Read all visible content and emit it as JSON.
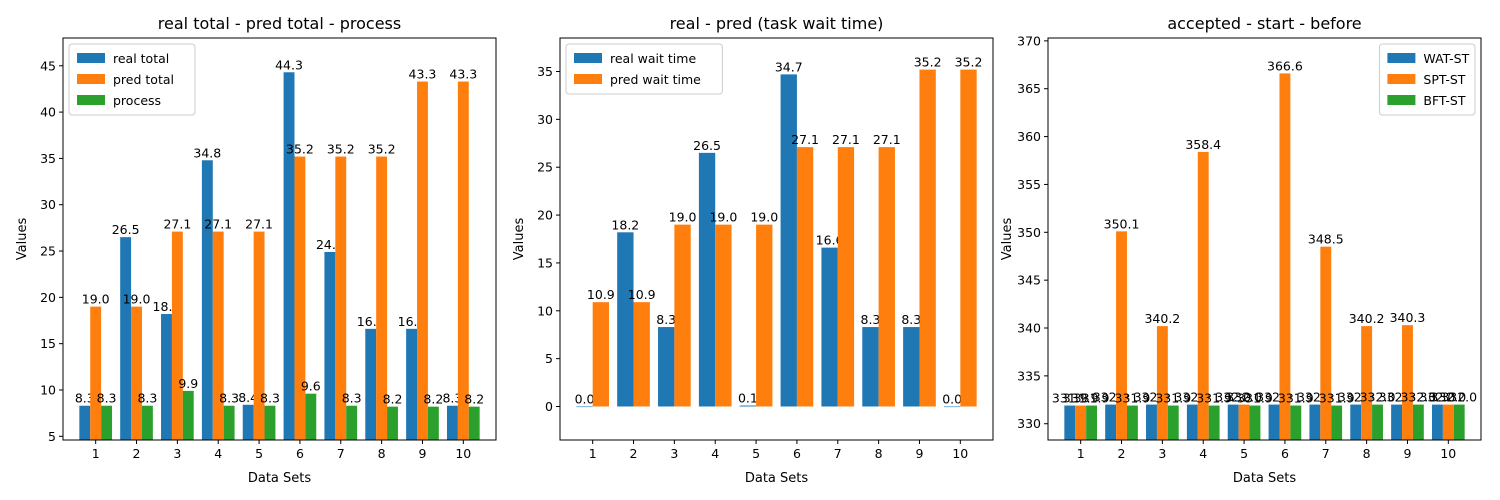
{
  "chart_data": [
    {
      "type": "bar",
      "title": "real total - pred total - process",
      "xlabel": "Data Sets",
      "ylabel": "Values",
      "categories": [
        "1",
        "2",
        "3",
        "4",
        "5",
        "6",
        "7",
        "8",
        "9",
        "10"
      ],
      "ylim": [
        4.6,
        48
      ],
      "yticks": [
        "5",
        "10",
        "15",
        "20",
        "25",
        "30",
        "35",
        "40",
        "45"
      ],
      "legend_position": "top-left",
      "grid": false,
      "series": [
        {
          "name": "real total",
          "color": "#1f77b4",
          "values": [
            8.3,
            26.5,
            18.2,
            34.8,
            8.4,
            44.3,
            24.9,
            16.6,
            16.6,
            8.3
          ],
          "labels": [
            "8.3",
            "26.5",
            "18.2",
            "34.8",
            "8.4",
            "44.3",
            "24.9",
            "16.6",
            "16.6",
            "8.3"
          ]
        },
        {
          "name": "pred total",
          "color": "#ff7f0e",
          "values": [
            19.0,
            19.0,
            27.1,
            27.1,
            27.1,
            35.2,
            35.2,
            35.2,
            43.3,
            43.3
          ],
          "labels": [
            "19.0",
            "19.0",
            "27.1",
            "27.1",
            "27.1",
            "35.2",
            "35.2",
            "35.2",
            "43.3",
            "43.3"
          ]
        },
        {
          "name": "process",
          "color": "#2ca02c",
          "values": [
            8.3,
            8.3,
            9.9,
            8.3,
            8.3,
            9.6,
            8.3,
            8.2,
            8.2,
            8.2
          ],
          "labels": [
            "8.3",
            "8.3",
            "9.9",
            "8.3",
            "8.3",
            "9.6",
            "8.3",
            "8.2",
            "8.2",
            "8.2"
          ]
        }
      ]
    },
    {
      "type": "bar",
      "title": "real - pred (task wait time)",
      "xlabel": "Data Sets",
      "ylabel": "Values",
      "categories": [
        "1",
        "2",
        "3",
        "4",
        "5",
        "6",
        "7",
        "8",
        "9",
        "10"
      ],
      "ylim": [
        -3.5,
        38.5
      ],
      "yticks": [
        "0",
        "5",
        "10",
        "15",
        "20",
        "25",
        "30",
        "35"
      ],
      "legend_position": "top-left",
      "grid": false,
      "series": [
        {
          "name": "real wait time",
          "color": "#1f77b4",
          "values": [
            0.0,
            18.2,
            8.3,
            26.5,
            0.1,
            34.7,
            16.6,
            8.3,
            8.3,
            0.0
          ],
          "labels": [
            "0.0",
            "18.2",
            "8.3",
            "26.5",
            "0.1",
            "34.7",
            "16.6",
            "8.3",
            "8.3",
            "0.0"
          ]
        },
        {
          "name": "pred wait time",
          "color": "#ff7f0e",
          "values": [
            10.9,
            10.9,
            19.0,
            19.0,
            19.0,
            27.1,
            27.1,
            27.1,
            35.2,
            35.2
          ],
          "labels": [
            "10.9",
            "10.9",
            "19.0",
            "19.0",
            "19.0",
            "27.1",
            "27.1",
            "27.1",
            "35.2",
            "35.2"
          ]
        }
      ]
    },
    {
      "type": "bar",
      "title": "accepted - start - before",
      "xlabel": "Data Sets",
      "ylabel": "Values",
      "categories": [
        "1",
        "2",
        "3",
        "4",
        "5",
        "6",
        "7",
        "8",
        "9",
        "10"
      ],
      "ylim": [
        328.3,
        370.3
      ],
      "yticks": [
        "330",
        "335",
        "340",
        "345",
        "350",
        "355",
        "360",
        "365",
        "370"
      ],
      "legend_position": "top-right",
      "grid": false,
      "series": [
        {
          "name": "WAT-ST",
          "color": "#1f77b4",
          "values": [
            331.9,
            332.0,
            332.0,
            332.0,
            332.0,
            332.0,
            332.0,
            332.0,
            332.0,
            332.0
          ],
          "labels": [
            "331.9",
            "332.0",
            "332.0",
            "332.0",
            "332.0",
            "332.0",
            "332.0",
            "332.0",
            "332.0",
            "332.0"
          ]
        },
        {
          "name": "SPT-ST",
          "color": "#ff7f0e",
          "values": [
            331.9,
            350.1,
            340.2,
            358.4,
            332.0,
            366.6,
            348.5,
            340.2,
            340.3,
            332.0
          ],
          "labels": [
            "331.9",
            "350.1",
            "340.2",
            "358.4",
            "332.0",
            "366.6",
            "348.5",
            "340.2",
            "340.3",
            "332.0"
          ]
        },
        {
          "name": "BFT-ST",
          "color": "#2ca02c",
          "values": [
            331.9,
            331.9,
            331.9,
            331.9,
            331.9,
            331.9,
            331.9,
            332.0,
            332.0,
            332.0
          ],
          "labels": [
            "331.9",
            "331.9",
            "331.9",
            "331.9",
            "331.9",
            "331.9",
            "331.9",
            "332.0",
            "332.0",
            "332.0"
          ]
        }
      ]
    }
  ]
}
